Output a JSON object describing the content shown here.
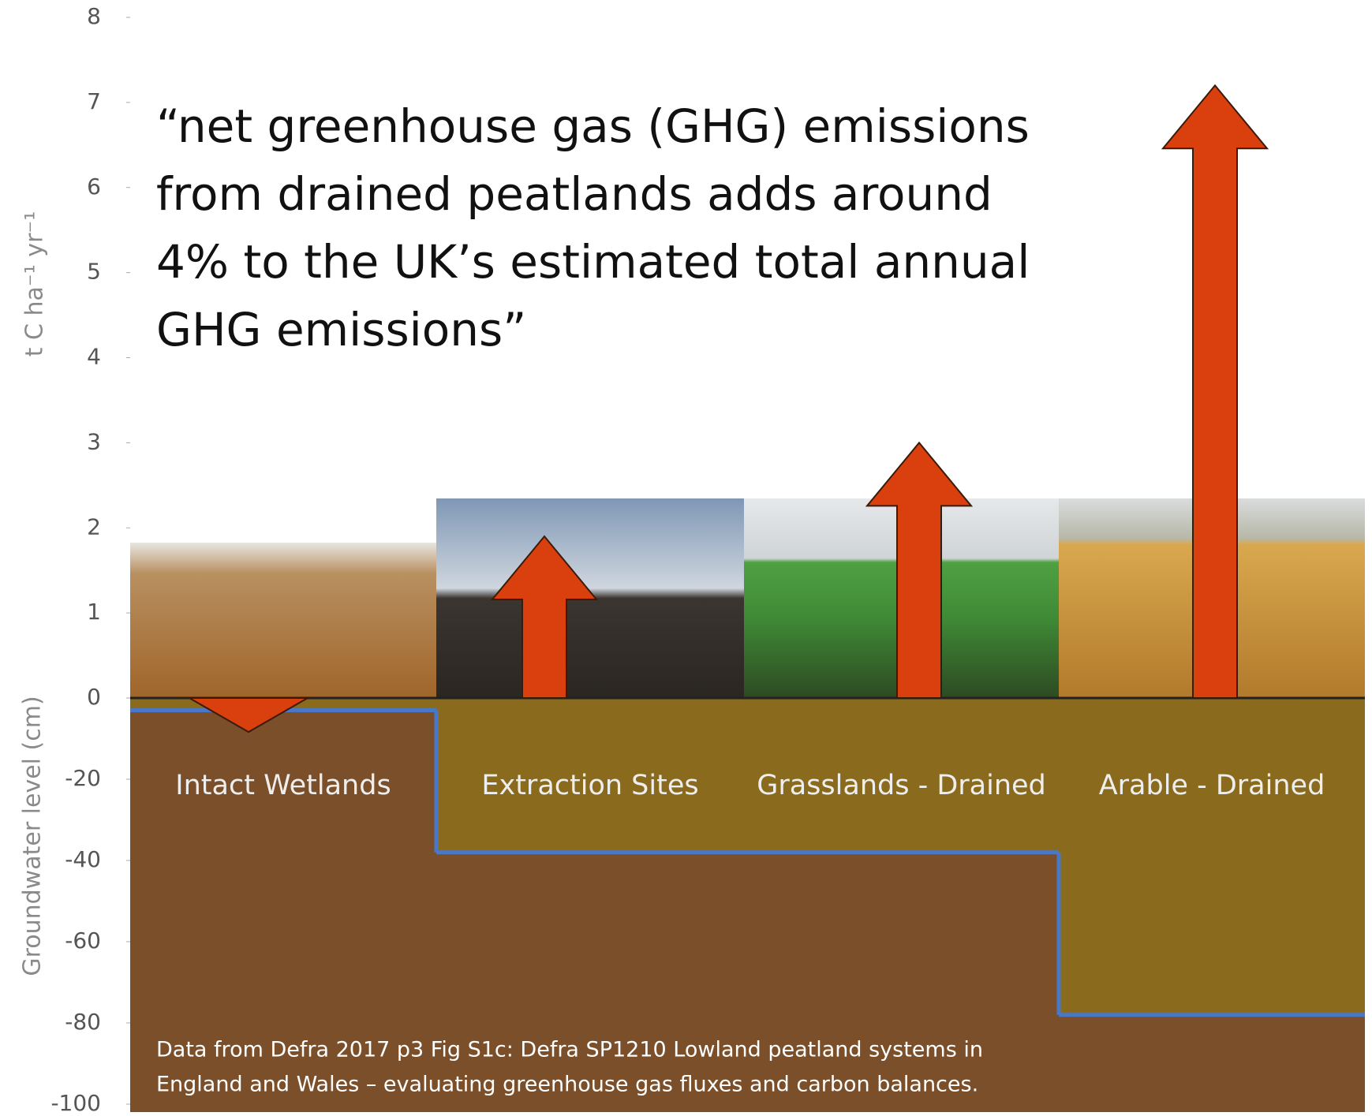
{
  "chart_data": [
    {
      "type": "arrow",
      "ylabel": "t C ha⁻¹ yr⁻¹",
      "annotation_lines": [
        "“net greenhouse gas (GHG) emissions",
        "from drained peatlands adds around",
        "4% to the UK’s estimated total annual",
        "GHG emissions”"
      ],
      "values": [
        -0.4,
        1.9,
        3.0,
        7.2
      ],
      "color": "#d9400e",
      "ylim": [
        0,
        8
      ],
      "yticks": [
        0,
        1,
        2,
        3,
        4,
        5,
        6,
        7,
        8
      ]
    },
    {
      "type": "step",
      "ylabel": "Groundwater level (cm)",
      "categories": [
        "Intact Wetlands",
        "Extraction Sites",
        "Grasslands - Drained",
        "Arable - Drained"
      ],
      "values": [
        -3,
        -38,
        -38,
        -78
      ],
      "color": "#4a78c8",
      "note_lines": [
        "Data from Defra 2017 p3 Fig S1c: Defra SP1210 Lowland peatland systems in",
        "England and Wales – evaluating greenhouse gas fluxes and carbon balances."
      ],
      "ylim": [
        -100,
        0
      ],
      "yticks": [
        -20,
        -40,
        -60,
        -80,
        -100
      ]
    }
  ]
}
